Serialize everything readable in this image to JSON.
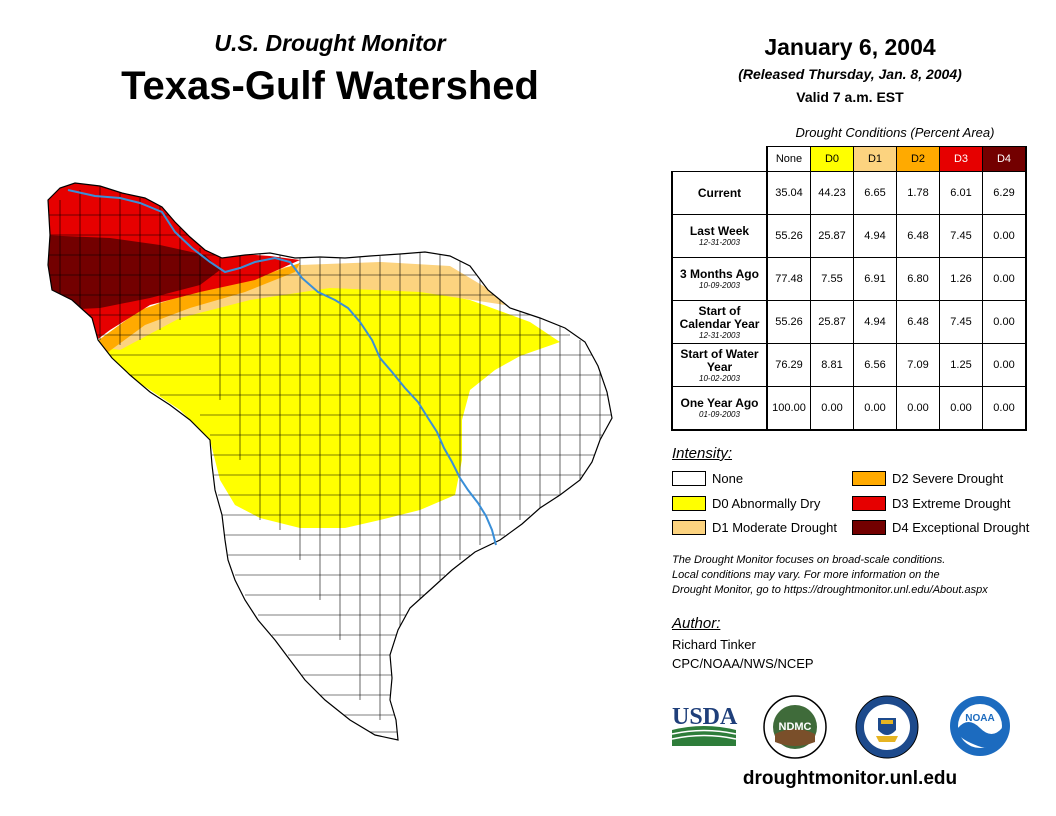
{
  "header": {
    "subtitle": "U.S. Drought Monitor",
    "title": "Texas-Gulf Watershed",
    "date": "January 6, 2004",
    "released": "(Released Thursday, Jan. 8, 2004)",
    "valid": "Valid 7 a.m. EST"
  },
  "table": {
    "caption": "Drought Conditions (Percent Area)",
    "columns": [
      "None",
      "D0",
      "D1",
      "D2",
      "D3",
      "D4"
    ],
    "rows": [
      {
        "label": "Current",
        "date": "",
        "values": [
          "35.04",
          "44.23",
          "6.65",
          "1.78",
          "6.01",
          "6.29"
        ]
      },
      {
        "label": "Last Week",
        "date": "12-31-2003",
        "values": [
          "55.26",
          "25.87",
          "4.94",
          "6.48",
          "7.45",
          "0.00"
        ]
      },
      {
        "label": "3 Months Ago",
        "date": "10-09-2003",
        "values": [
          "77.48",
          "7.55",
          "6.91",
          "6.80",
          "1.26",
          "0.00"
        ]
      },
      {
        "label": "Start of Calendar Year",
        "date": "12-31-2003",
        "values": [
          "55.26",
          "25.87",
          "4.94",
          "6.48",
          "7.45",
          "0.00"
        ]
      },
      {
        "label": "Start of Water Year",
        "date": "10-02-2003",
        "values": [
          "76.29",
          "8.81",
          "6.56",
          "7.09",
          "1.25",
          "0.00"
        ]
      },
      {
        "label": "One Year Ago",
        "date": "01-09-2003",
        "values": [
          "100.00",
          "0.00",
          "0.00",
          "0.00",
          "0.00",
          "0.00"
        ]
      }
    ]
  },
  "legend": {
    "title": "Intensity:",
    "items": [
      {
        "label": "None",
        "color": "#ffffff"
      },
      {
        "label": "D0 Abnormally Dry",
        "color": "#ffff00"
      },
      {
        "label": "D1 Moderate Drought",
        "color": "#fcd37f"
      },
      {
        "label": "D2 Severe Drought",
        "color": "#ffaa00"
      },
      {
        "label": "D3 Extreme Drought",
        "color": "#e60000"
      },
      {
        "label": "D4 Exceptional Drought",
        "color": "#730000"
      }
    ]
  },
  "note": {
    "line1": "The Drought Monitor focuses on broad-scale conditions.",
    "line2": "Local conditions may vary. For more information on the",
    "line3": "Drought Monitor, go to https://droughtmonitor.unl.edu/About.aspx"
  },
  "author": {
    "title": "Author:",
    "name": "Richard Tinker",
    "org": "CPC/NOAA/NWS/NCEP"
  },
  "logos": {
    "usda": "USDA",
    "ndmc": "NDMC",
    "noaa": "NOAA"
  },
  "footer_url": "droughtmonitor.unl.edu",
  "colors": {
    "none": "#ffffff",
    "d0": "#ffff00",
    "d1": "#fcd37f",
    "d2": "#ffaa00",
    "d3": "#e60000",
    "d4": "#730000",
    "river": "#3a8fd8"
  }
}
